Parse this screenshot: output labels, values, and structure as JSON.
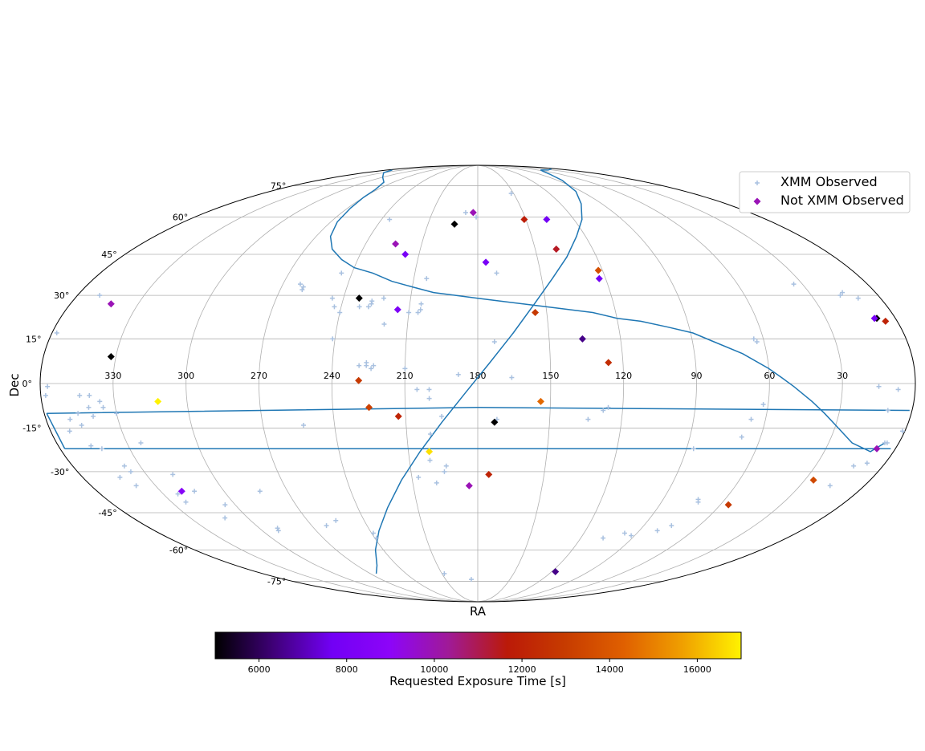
{
  "chart_data": {
    "type": "scatter",
    "projection": "mollweide",
    "xlabel": "RA",
    "ylabel": "Dec",
    "colorbar": {
      "label": "Requested Exposure Time [s]",
      "range": [
        5000,
        17000
      ],
      "ticks": [
        "6000",
        "8000",
        "10000",
        "12000",
        "14000",
        "16000"
      ],
      "tick_values": [
        6000,
        8000,
        10000,
        12000,
        14000,
        16000
      ],
      "colormap": "gnuplot",
      "stops": [
        "#000000",
        "#3f0078",
        "#7200f5",
        "#8d05f8",
        "#a01a96",
        "#bb1a08",
        "#c73c00",
        "#e06000",
        "#f0a000",
        "#fff200"
      ]
    },
    "ra_ticks": [
      "330",
      "300",
      "270",
      "240",
      "210",
      "180",
      "150",
      "120",
      "90",
      "60",
      "30"
    ],
    "ra_tick_values": [
      330,
      300,
      270,
      240,
      210,
      180,
      150,
      120,
      90,
      60,
      30
    ],
    "dec_ticks": [
      "75°",
      "60°",
      "45°",
      "30°",
      "15°",
      "0°",
      "-15°",
      "-30°",
      "-45°",
      "-60°",
      "-75°"
    ],
    "dec_tick_values": [
      75,
      60,
      45,
      30,
      15,
      0,
      -15,
      -30,
      -45,
      -60,
      -75
    ],
    "grid": true,
    "legend_position": "top-right",
    "legend": [
      "XMM Observed",
      "Not XMM Observed"
    ],
    "colors": {
      "observed": "#a9c1e0",
      "galactic_plane": "#1f77b4",
      "grid": "#b0b0b0"
    },
    "series": [
      {
        "name": "XMM Observed",
        "marker": "plus",
        "points": [
          [
            152,
            71
          ],
          [
            188,
            62
          ],
          [
            181,
            60
          ],
          [
            235,
            59
          ],
          [
            245,
            29
          ],
          [
            243,
            26
          ],
          [
            232,
            26
          ],
          [
            262,
            34
          ],
          [
            260,
            33
          ],
          [
            260,
            32
          ],
          [
            227,
            28
          ],
          [
            228,
            26
          ],
          [
            227,
            27
          ],
          [
            222,
            29
          ],
          [
            240,
            24
          ],
          [
            220,
            20
          ],
          [
            204,
            36
          ],
          [
            205,
            25
          ],
          [
            205,
            27
          ],
          [
            206,
            24
          ],
          [
            210,
            24
          ],
          [
            171,
            38
          ],
          [
            173,
            14
          ],
          [
            241,
            15
          ],
          [
            229,
            6
          ],
          [
            226,
            7
          ],
          [
            226,
            6
          ],
          [
            223,
            6
          ],
          [
            224,
            5
          ],
          [
            210,
            5
          ],
          [
            188,
            3
          ],
          [
            166,
            2
          ],
          [
            205,
            -2
          ],
          [
            200,
            -2
          ],
          [
            200,
            -5
          ],
          [
            195,
            -11
          ],
          [
            172,
            -12
          ],
          [
            200,
            -17
          ],
          [
            194,
            -28
          ],
          [
            195,
            -30
          ],
          [
            199,
            -34
          ],
          [
            207,
            -32
          ],
          [
            201,
            -26
          ],
          [
            253,
            -14
          ],
          [
            283,
            -37
          ],
          [
            255,
            -48
          ],
          [
            262,
            -50
          ],
          [
            290,
            -51
          ],
          [
            291,
            -52
          ],
          [
            305,
            -42
          ],
          [
            323,
            -41
          ],
          [
            323,
            -38
          ],
          [
            318,
            -31
          ],
          [
            324,
            -20
          ],
          [
            346,
            -10
          ],
          [
            341,
            -8
          ],
          [
            335,
            -8
          ],
          [
            346,
            -14
          ],
          [
            344,
            -4
          ],
          [
            340,
            -4
          ],
          [
            330,
            -10
          ],
          [
            340,
            -11
          ],
          [
            336,
            -6
          ],
          [
            358,
            -4
          ],
          [
            357,
            -1
          ],
          [
            350,
            -12
          ],
          [
            352,
            -16
          ],
          [
            346,
            -21
          ],
          [
            342,
            -22
          ],
          [
            337,
            -28
          ],
          [
            339,
            -35
          ],
          [
            336,
            -30
          ],
          [
            343,
            -32
          ],
          [
            314,
            -37
          ],
          [
            312,
            -47
          ],
          [
            245,
            38
          ],
          [
            239,
            -53
          ],
          [
            239,
            -55
          ],
          [
            208,
            -71
          ],
          [
            186,
            -74
          ],
          [
            134,
            -12
          ],
          [
            128,
            -9
          ],
          [
            126,
            -8
          ],
          [
            66,
            -12
          ],
          [
            62,
            -7
          ],
          [
            68,
            -18
          ],
          [
            87,
            -22
          ],
          [
            73,
            -40
          ],
          [
            72,
            -41
          ],
          [
            80,
            -52
          ],
          [
            75,
            -50
          ],
          [
            97,
            -53
          ],
          [
            92,
            -54
          ],
          [
            107,
            -55
          ],
          [
            15,
            -1
          ],
          [
            10,
            -9
          ],
          [
            7,
            -2
          ],
          [
            6,
            -20
          ],
          [
            8,
            -27
          ],
          [
            13,
            -28
          ],
          [
            5,
            -20
          ],
          [
            16,
            -35
          ],
          [
            1,
            -16
          ],
          [
            358,
            17
          ],
          [
            350,
            30
          ],
          [
            15,
            31
          ],
          [
            17,
            30
          ],
          [
            64,
            15
          ],
          [
            63,
            14
          ],
          [
            34,
            34
          ],
          [
            10,
            29
          ]
        ]
      },
      {
        "name": "Not XMM Observed",
        "marker": "diamond",
        "points": [
          {
            "ra": 183,
            "dec": 62,
            "exp": 9900
          },
          {
            "ra": 194,
            "dec": 57,
            "exp": 5000
          },
          {
            "ra": 151,
            "dec": 59,
            "exp": 11800
          },
          {
            "ra": 137,
            "dec": 59,
            "exp": 7700
          },
          {
            "ra": 224,
            "dec": 49,
            "exp": 9900
          },
          {
            "ra": 217,
            "dec": 45,
            "exp": 8000
          },
          {
            "ra": 176,
            "dec": 42,
            "exp": 8000
          },
          {
            "ra": 139,
            "dec": 47,
            "exp": 11400
          },
          {
            "ra": 122,
            "dec": 39,
            "exp": 13700
          },
          {
            "ra": 123,
            "dec": 36,
            "exp": 7700
          },
          {
            "ra": 233,
            "dec": 29,
            "exp": 5000
          },
          {
            "ra": 215,
            "dec": 25,
            "exp": 8200
          },
          {
            "ra": 155,
            "dec": 24,
            "exp": 12900
          },
          {
            "ra": 136,
            "dec": 15,
            "exp": 6500
          },
          {
            "ra": 126,
            "dec": 7,
            "exp": 12400
          },
          {
            "ra": 229,
            "dec": 1,
            "exp": 12900
          },
          {
            "ra": 154,
            "dec": -6,
            "exp": 14500
          },
          {
            "ra": 225,
            "dec": -8,
            "exp": 13200
          },
          {
            "ra": 213,
            "dec": -11,
            "exp": 12100
          },
          {
            "ra": 173,
            "dec": -13,
            "exp": 5000
          },
          {
            "ra": 201,
            "dec": -23,
            "exp": 16700
          },
          {
            "ra": 175,
            "dec": -31,
            "exp": 12000
          },
          {
            "ra": 184,
            "dec": -35,
            "exp": 9900
          },
          {
            "ra": 312,
            "dec": -6,
            "exp": 17000
          },
          {
            "ra": 342,
            "dec": 27,
            "exp": 9900
          },
          {
            "ra": 332,
            "dec": 9,
            "exp": 5000
          },
          {
            "ra": 5,
            "dec": 21,
            "exp": 12000
          },
          {
            "ra": 8,
            "dec": 22,
            "exp": 5000
          },
          {
            "ra": 9,
            "dec": 22,
            "exp": 8000
          },
          {
            "ra": 8,
            "dec": -22,
            "exp": 9900
          },
          {
            "ra": 26,
            "dec": -33,
            "exp": 13500
          },
          {
            "ra": 56,
            "dec": -42,
            "exp": 12900
          },
          {
            "ra": 320,
            "dec": -37,
            "exp": 8700
          },
          {
            "ra": 117,
            "dec": -70,
            "exp": 6500
          }
        ]
      }
    ],
    "galactic_plane": {
      "label": "",
      "points": [
        [
          6,
          -20
        ],
        [
          10,
          -23
        ],
        [
          20,
          -20
        ],
        [
          30,
          -14
        ],
        [
          36,
          -10
        ],
        [
          42,
          -6
        ],
        [
          50,
          -1
        ],
        [
          55,
          2
        ],
        [
          60,
          5
        ],
        [
          70,
          10
        ],
        [
          81,
          14
        ],
        [
          89,
          17
        ],
        [
          99,
          19
        ],
        [
          110,
          21
        ],
        [
          120,
          22
        ],
        [
          130,
          24
        ],
        [
          140,
          25
        ],
        [
          150,
          26
        ],
        [
          160,
          27
        ],
        [
          170,
          28
        ],
        [
          180,
          29
        ],
        [
          190,
          30
        ],
        [
          200,
          31
        ],
        [
          210,
          33
        ],
        [
          220,
          35
        ],
        [
          230,
          38
        ],
        [
          240,
          40
        ],
        [
          248,
          43
        ],
        [
          256,
          47
        ],
        [
          262,
          52
        ],
        [
          266,
          58
        ],
        [
          268,
          64
        ],
        [
          270,
          69
        ],
        [
          272,
          73
        ],
        [
          280,
          77
        ],
        [
          300,
          80
        ],
        [
          330,
          83
        ],
        [
          350,
          85
        ],
        [
          10,
          86
        ],
        [
          40,
          85
        ],
        [
          55,
          85
        ],
        [
          65,
          84
        ],
        [
          75,
          82
        ],
        [
          85,
          78
        ],
        [
          95,
          72
        ],
        [
          105,
          66
        ],
        [
          115,
          59
        ],
        [
          125,
          52
        ],
        [
          135,
          44
        ],
        [
          145,
          36
        ],
        [
          155,
          27
        ],
        [
          165,
          17
        ],
        [
          175,
          7
        ],
        [
          185,
          -3
        ],
        [
          195,
          -13
        ],
        [
          205,
          -23
        ],
        [
          215,
          -33
        ],
        [
          225,
          -43
        ],
        [
          235,
          -52
        ],
        [
          245,
          -60
        ],
        [
          255,
          -67
        ],
        [
          265,
          -71
        ]
      ]
    },
    "galactic_plane_outline": {
      "upper": [
        [
          359,
          -10
        ],
        [
          180,
          -8
        ],
        [
          1,
          -9
        ]
      ],
      "lower": [
        [
          358,
          -22
        ],
        [
          180,
          -22
        ],
        [
          2,
          -22
        ]
      ]
    }
  }
}
